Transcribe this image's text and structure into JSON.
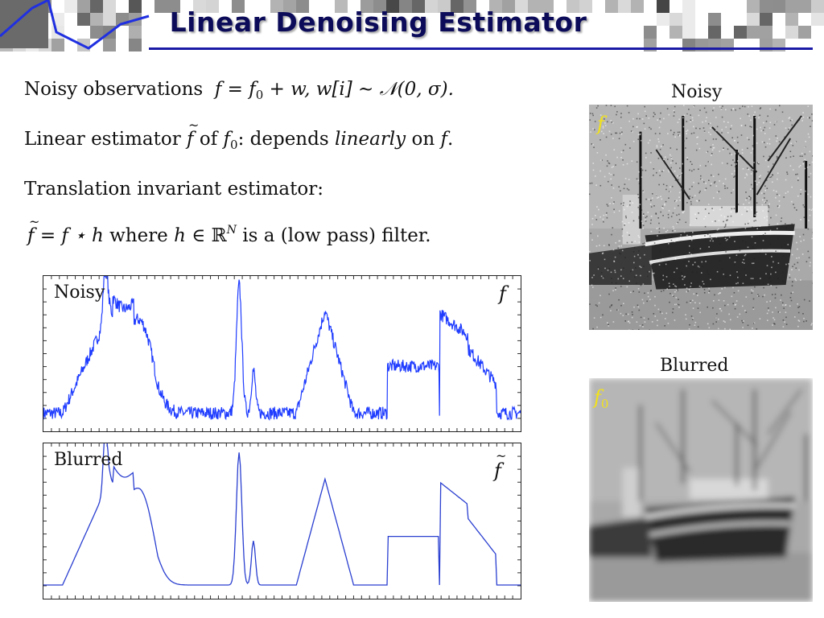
{
  "slide": {
    "title": "Linear Denoising Estimator"
  },
  "text": {
    "line1": {
      "prefix": "Noisy observations",
      "eq": "f = f",
      "eq_sub": "0",
      "eq_rest": " + w,  w[i] ∼ 𝒩(0, σ)."
    },
    "line2": {
      "prefix": "Linear estimator ",
      "ftilde": "f",
      "of": " of ",
      "f0": "f",
      "f0_sub": "0",
      "colon": ":  depends ",
      "linearly": "linearly",
      "on": " on ",
      "f": "f",
      "period": "."
    },
    "line3": "Translation invariant estimator:",
    "line4": {
      "ftilde": "f",
      "eq": " = f ⋆ h",
      "where": " where ",
      "h": "h",
      "in": " ∈ ℝ",
      "sup": "N",
      "rest": " is a (low pass) filter."
    }
  },
  "plots": {
    "noisy": {
      "label": "Noisy",
      "symbol": "f"
    },
    "blurred": {
      "label": "Blurred",
      "symbol": "f"
    }
  },
  "images": {
    "noisy": {
      "caption": "Noisy",
      "symbol": "f"
    },
    "blurred": {
      "caption": "Blurred",
      "symbol": "f",
      "symbol_sub": "0"
    }
  },
  "colors": {
    "signal_noisy": "#1f3cff",
    "signal_blurred": "#2a3fd0",
    "title": "#0b0b5a",
    "accent_rule": "#1a1aa6",
    "image_symbol": "#f2e21a"
  }
}
